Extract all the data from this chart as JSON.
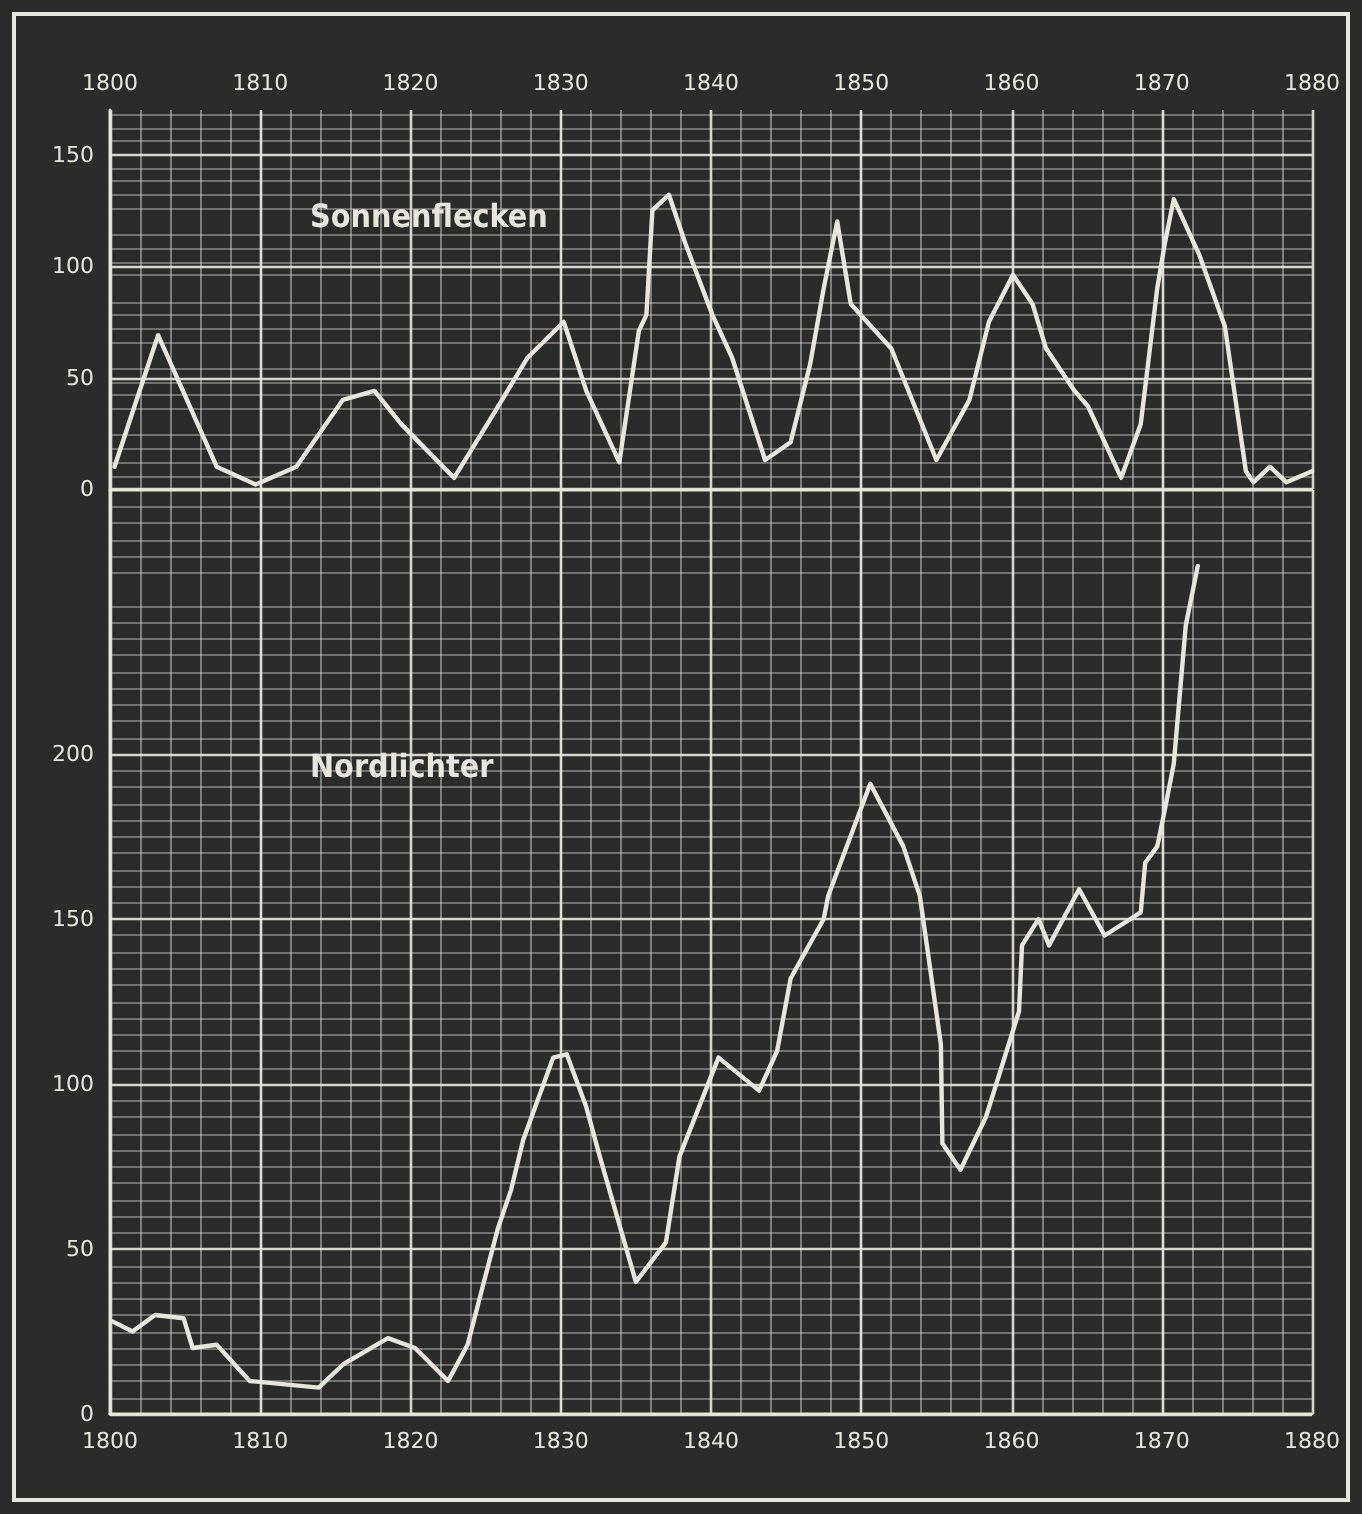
{
  "chart_data": [
    {
      "type": "line",
      "title": "Sonnenflecken",
      "xlim": [
        1800,
        1880
      ],
      "xticks": [
        1800,
        1810,
        1820,
        1830,
        1840,
        1850,
        1860,
        1870,
        1880
      ],
      "ylim": [
        0,
        170
      ],
      "yticks": [
        0,
        50,
        100,
        150
      ],
      "grid": true,
      "marker": "none",
      "line_style": "solid",
      "series": [
        {
          "color": "#e8e6dc",
          "x": [
            1800.3,
            1803.2,
            1807.1,
            1809.7,
            1812.4,
            1815.5,
            1817.6,
            1819.4,
            1822.9,
            1825.1,
            1827.8,
            1830.2,
            1831.7,
            1833.9,
            1835.2,
            1835.7,
            1836.1,
            1837.2,
            1838.3,
            1840.1,
            1841.4,
            1843.6,
            1845.3,
            1846.6,
            1847.5,
            1848.4,
            1849.3,
            1852.0,
            1855.0,
            1857.2,
            1858.5,
            1860.1,
            1861.4,
            1862.3,
            1864.2,
            1865.1,
            1867.3,
            1868.6,
            1869.7,
            1870.2,
            1870.8,
            1872.5,
            1874.2,
            1875.6,
            1876.1,
            1877.2,
            1878.3,
            1880.0
          ],
          "values": [
            10,
            69,
            10,
            2,
            10,
            40,
            44,
            29,
            5,
            29,
            59,
            75,
            44,
            12,
            71,
            78,
            125,
            132,
            110,
            78,
            59,
            13,
            21,
            56,
            90,
            120,
            83,
            63,
            13,
            40,
            75,
            96,
            83,
            63,
            44,
            37,
            5,
            29,
            90,
            110,
            130,
            105,
            73,
            8,
            3,
            10,
            3,
            8
          ]
        }
      ]
    },
    {
      "type": "line",
      "title": "Nordlichter",
      "xlim": [
        1800,
        1880
      ],
      "xticks": [
        1800,
        1810,
        1820,
        1830,
        1840,
        1850,
        1860,
        1870,
        1880
      ],
      "ylim": [
        0,
        280
      ],
      "yticks": [
        0,
        50,
        100,
        150,
        200
      ],
      "grid": true,
      "marker": "none",
      "line_style": "solid",
      "series": [
        {
          "color": "#e8e6dc",
          "x": [
            1800.2,
            1801.5,
            1803.0,
            1804.9,
            1805.5,
            1807.1,
            1809.3,
            1813.9,
            1815.5,
            1818.5,
            1820.3,
            1822.5,
            1823.8,
            1825.8,
            1826.7,
            1827.5,
            1829.5,
            1830.4,
            1831.7,
            1832.6,
            1835.0,
            1837.0,
            1837.9,
            1840.5,
            1843.2,
            1844.4,
            1845.3,
            1847.5,
            1847.8,
            1850.6,
            1852.8,
            1853.9,
            1855.3,
            1855.4,
            1856.6,
            1858.3,
            1860.5,
            1860.7,
            1861.8,
            1862.5,
            1864.5,
            1866.2,
            1868.6,
            1868.9,
            1869.7,
            1870.2,
            1870.8,
            1871.6,
            1872.4
          ],
          "values": [
            28,
            25,
            30,
            29,
            20,
            21,
            10,
            8,
            15,
            23,
            20,
            10,
            21,
            56,
            68,
            83,
            108,
            109,
            93,
            78,
            40,
            52,
            78,
            108,
            98,
            110,
            132,
            150,
            157,
            191,
            172,
            157,
            112,
            82,
            74,
            90,
            122,
            142,
            150,
            142,
            159,
            145,
            152,
            167,
            172,
            183,
            197,
            239,
            257
          ]
        }
      ]
    }
  ]
}
